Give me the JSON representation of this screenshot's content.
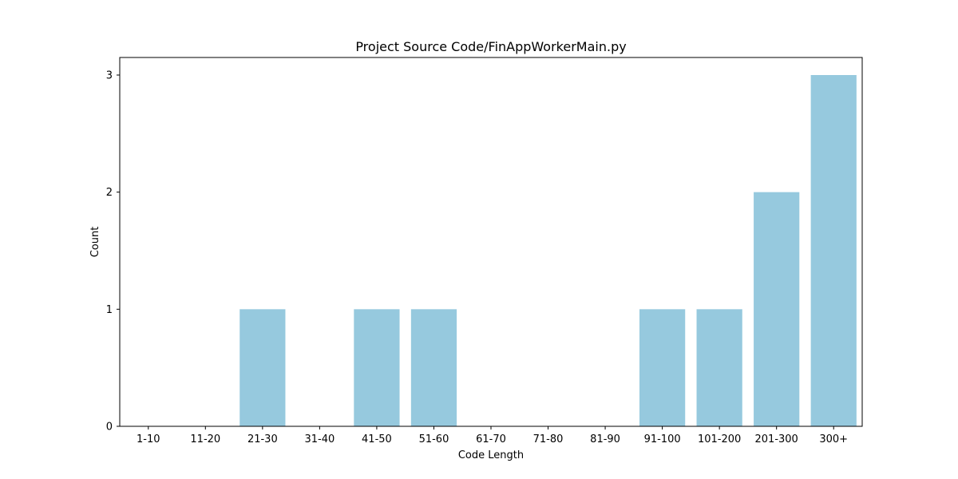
{
  "chart_data": {
    "type": "bar",
    "title": "Project Source Code/FinAppWorkerMain.py",
    "xlabel": "Code Length",
    "ylabel": "Count",
    "categories": [
      "1-10",
      "11-20",
      "21-30",
      "31-40",
      "41-50",
      "51-60",
      "61-70",
      "71-80",
      "81-90",
      "91-100",
      "101-200",
      "201-300",
      "300+"
    ],
    "values": [
      0,
      0,
      1,
      0,
      1,
      1,
      0,
      0,
      0,
      1,
      1,
      2,
      3
    ],
    "ylim": [
      0,
      3.15
    ],
    "yticks": [
      "0",
      "1",
      "2",
      "3"
    ],
    "grid": false,
    "legend": "none",
    "bar_color": "#96c9de"
  }
}
